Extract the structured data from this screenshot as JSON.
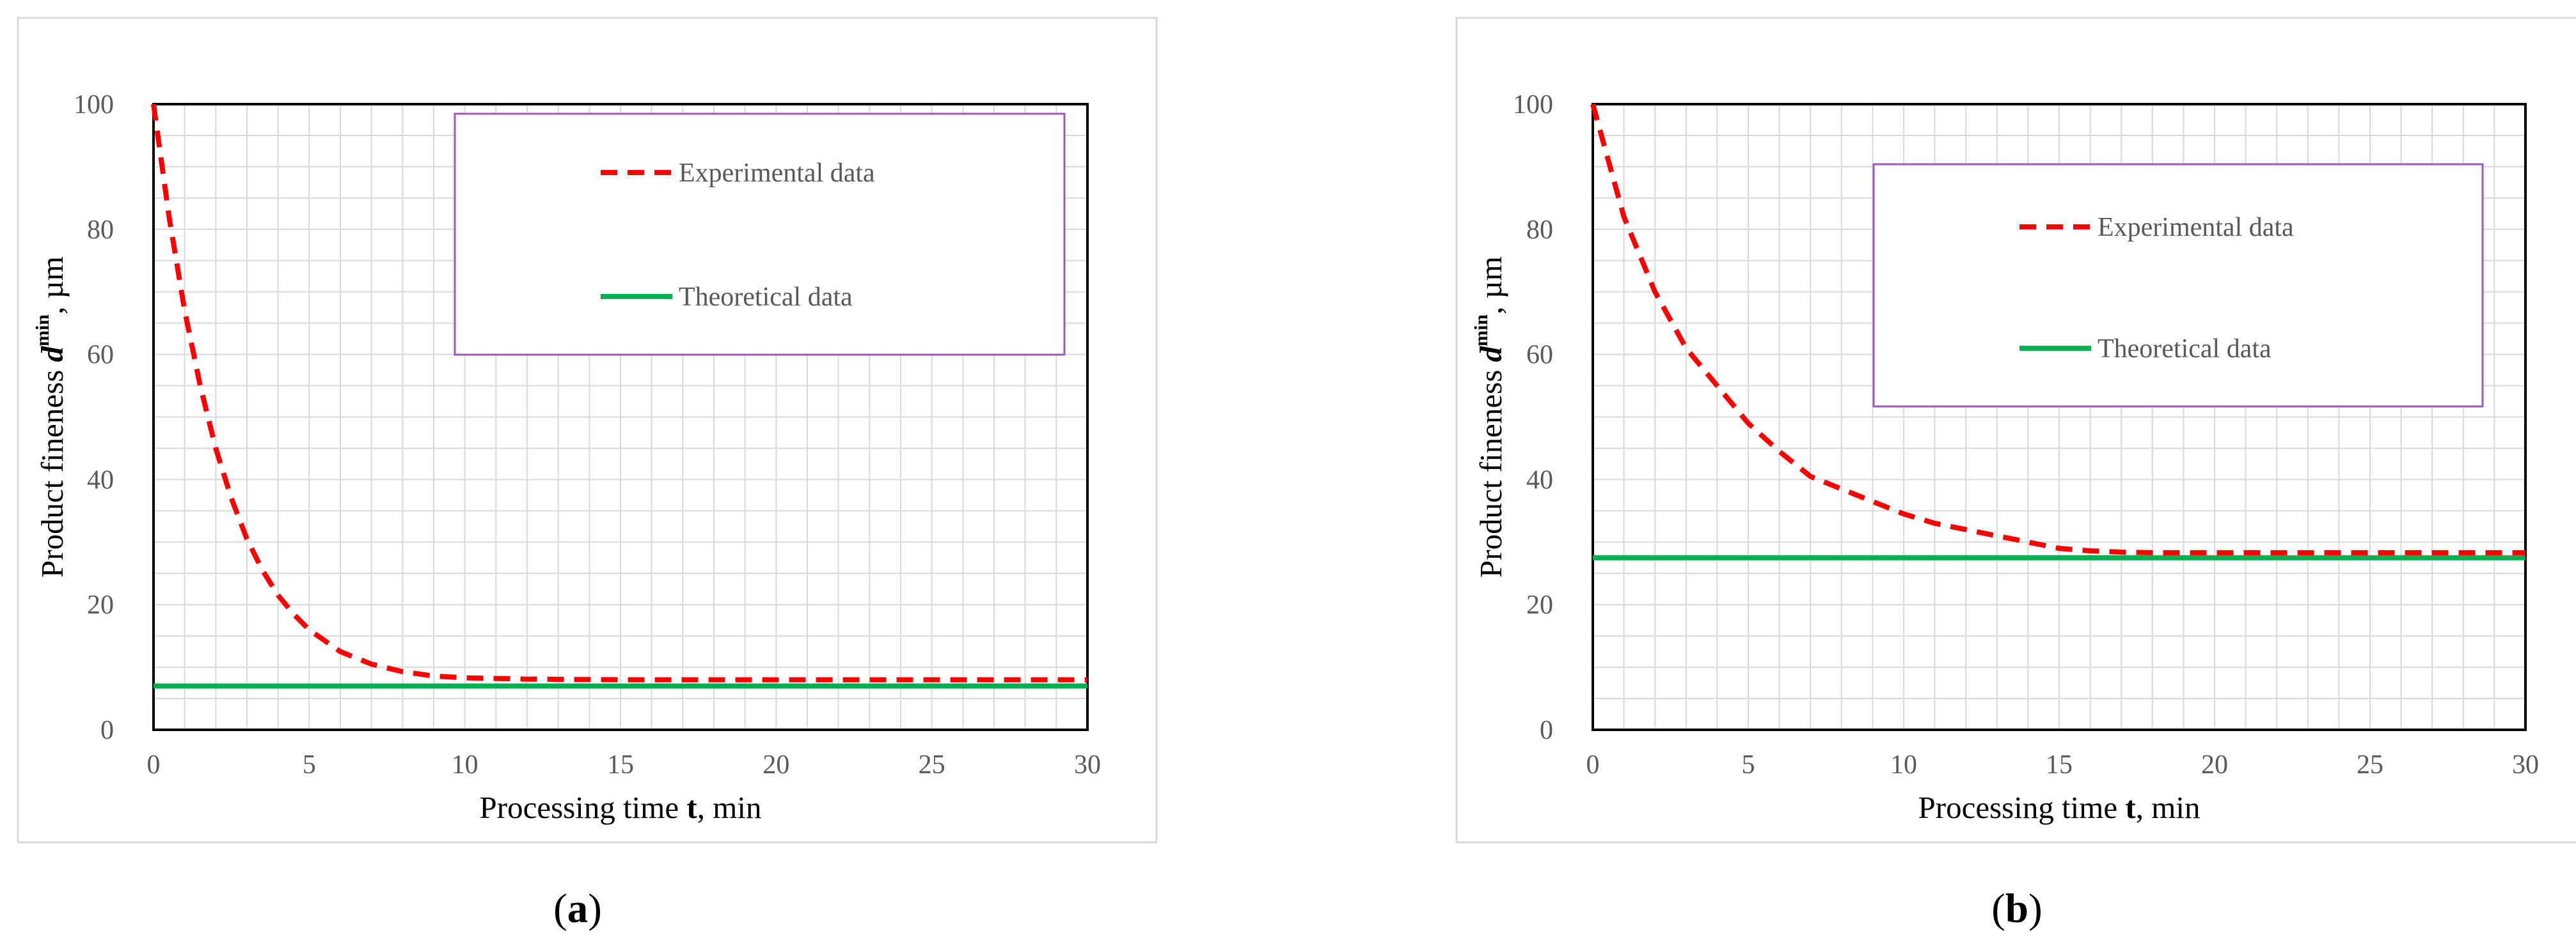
{
  "chart_data": [
    {
      "type": "line",
      "caption": "(a)",
      "caption_letter": "a",
      "xlabel": "Processing  time t, min",
      "xlabel_prefix": "Processing  time ",
      "xlabel_var": "t",
      "xlabel_suffix": ", min",
      "ylabel": "Product  fineness d min , µm",
      "ylabel_prefix": "Product  fineness ",
      "ylabel_var": "d",
      "ylabel_sup": "min",
      "ylabel_suffix": ", µm",
      "xlim": [
        0,
        30
      ],
      "ylim": [
        0,
        100
      ],
      "xticks": [
        "0",
        "5",
        "10",
        "15",
        "20",
        "25",
        "30"
      ],
      "yticks": [
        "0",
        "20",
        "40",
        "60",
        "80",
        "100"
      ],
      "grid": true,
      "legend_placement": "top-right",
      "series": [
        {
          "name": "Experimental data",
          "color": "#ff0000",
          "style": "dashed",
          "x": [
            0,
            0.5,
            1,
            1.5,
            2,
            2.5,
            3,
            3.5,
            4,
            4.5,
            5,
            6,
            7,
            8,
            9,
            10,
            12,
            15,
            20,
            25,
            30
          ],
          "y": [
            100,
            82,
            67,
            55,
            45,
            37,
            30.5,
            25.5,
            21.5,
            18.5,
            16,
            12.5,
            10.5,
            9.3,
            8.6,
            8.3,
            8.1,
            8,
            8,
            8,
            8
          ]
        },
        {
          "name": "Theoretical data",
          "color": "#00b050",
          "style": "solid",
          "x": [
            0,
            30
          ],
          "y": [
            7,
            7
          ]
        }
      ]
    },
    {
      "type": "line",
      "caption": "(b)",
      "caption_letter": "b",
      "xlabel": "Processing  time t, min",
      "xlabel_prefix": "Processing  time ",
      "xlabel_var": "t",
      "xlabel_suffix": ", min",
      "ylabel": "Product  fineness d min , µm",
      "ylabel_prefix": "Product  fineness ",
      "ylabel_var": "d",
      "ylabel_sup": "min",
      "ylabel_suffix": ", µm",
      "xlim": [
        0,
        30
      ],
      "ylim": [
        0,
        100
      ],
      "xticks": [
        "0",
        "5",
        "10",
        "15",
        "20",
        "25",
        "30"
      ],
      "yticks": [
        "0",
        "20",
        "40",
        "60",
        "80",
        "100"
      ],
      "grid": true,
      "legend_placement": "top-right",
      "series": [
        {
          "name": "Experimental data",
          "color": "#ff0000",
          "style": "dashed",
          "x": [
            0,
            1,
            2,
            3,
            4,
            5,
            6,
            7,
            8,
            9,
            10,
            11,
            12,
            13,
            14,
            15,
            16,
            17,
            18,
            20,
            25,
            30
          ],
          "y": [
            100,
            82,
            70,
            61,
            55,
            49,
            44.5,
            40.5,
            38.5,
            36.5,
            34.5,
            33,
            32,
            31,
            30,
            29,
            28.6,
            28.4,
            28.3,
            28.3,
            28.3,
            28.3
          ]
        },
        {
          "name": "Theoretical data",
          "color": "#00b050",
          "style": "solid",
          "x": [
            0,
            30
          ],
          "y": [
            27.5,
            27.5
          ]
        }
      ]
    }
  ]
}
